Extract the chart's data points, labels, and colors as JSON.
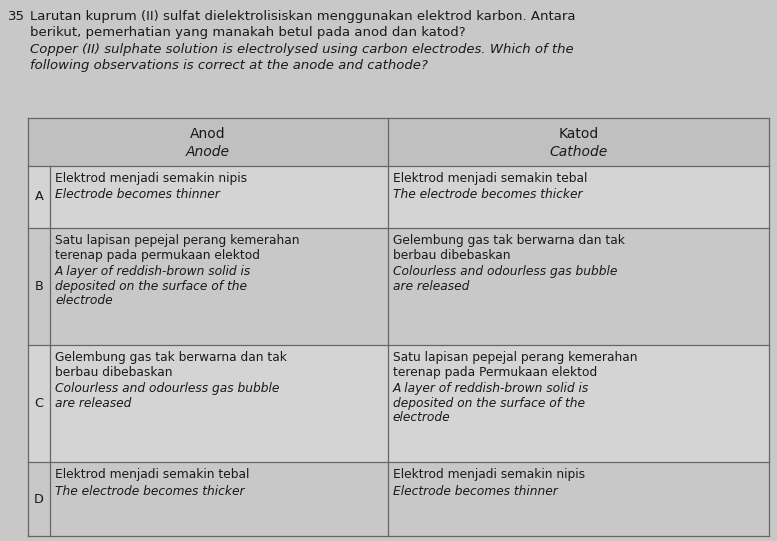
{
  "question_number": "35",
  "question_text_malay_line1": "Larutan kuprum (II) sulfat dielektrolisiskan menggunakan elektrod karbon. Antara",
  "question_text_malay_line2": "berikut, pemerhatian yang manakah betul pada anod dan katod?",
  "question_text_english_line1": "Copper (II) sulphate solution is electrolysed using carbon electrodes. Which of the",
  "question_text_english_line2": "following observations is correct at the anode and cathode?",
  "header_col1_line1": "Anod",
  "header_col1_line2": "Anode",
  "header_col2_line1": "Katod",
  "header_col2_line2": "Cathode",
  "rows": [
    {
      "label": "A",
      "col1_bold": "Elektrod menjadi semakin nipis",
      "col1_italic": "Electrode becomes thinner",
      "col2_bold": "Elektrod menjadi semakin tebal",
      "col2_italic": "The electrode becomes thicker"
    },
    {
      "label": "B",
      "col1_bold": "Satu lapisan pepejal perang kemerahan\nterenap pada permukaan elektod",
      "col1_italic": "A layer of reddish-brown solid is\ndeposited on the surface of the\nelectrode",
      "col2_bold": "Gelembung gas tak berwarna dan tak\nberbau dibebaskan",
      "col2_italic": "Colourless and odourless gas bubble\nare released"
    },
    {
      "label": "C",
      "col1_bold": "Gelembung gas tak berwarna dan tak\nberbau dibebaskan",
      "col1_italic": "Colourless and odourless gas bubble\nare released",
      "col2_bold": "Satu lapisan pepejal perang kemerahan\nterenap pada Permukaan elektod",
      "col2_italic": "A layer of reddish-brown solid is\ndeposited on the surface of the\nelectrode"
    },
    {
      "label": "D",
      "col1_bold": "Elektrod menjadi semakin tebal",
      "col1_italic": "The electrode becomes thicker",
      "col2_bold": "Elektrod menjadi semakin nipis",
      "col2_italic": "Electrode becomes thinner"
    }
  ],
  "background_color": "#c8c8c8",
  "header_bg": "#c0c0c0",
  "row_bg_light": "#d4d4d4",
  "row_bg_dark": "#c8c8c8",
  "text_color": "#1a1a1a",
  "border_color": "#666666",
  "fig_width": 7.77,
  "fig_height": 5.41,
  "dpi": 100
}
